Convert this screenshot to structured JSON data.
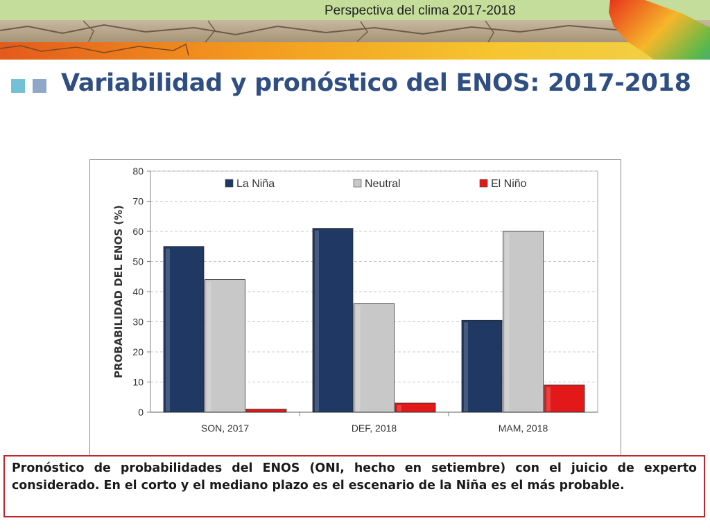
{
  "header": {
    "subtitle": "Perspectiva del clima 2017-2018"
  },
  "slide": {
    "title": "Variabilidad y pronóstico del ENOS: 2017-2018"
  },
  "caption": "Pronóstico de probabilidades del ENOS (ONI, hecho en setiembre) con el juicio de experto considerado. En el corto y el mediano plazo es el escenario de la Niña es el más probable.",
  "colors": {
    "la_nina": "#1f3864",
    "neutral": "#c8c8c8",
    "el_nino": "#e31818",
    "title": "#2f4e82",
    "caption_border": "#c0262b"
  },
  "chart_data": {
    "type": "bar",
    "title": "",
    "xlabel": "",
    "ylabel": "PROBABILIDAD DEL ENOS (%)",
    "ylim": [
      0,
      80
    ],
    "yticks": [
      0,
      10,
      20,
      30,
      40,
      50,
      60,
      70,
      80
    ],
    "grid": true,
    "legend_position": "top",
    "categories": [
      "SON, 2017",
      "DEF, 2018",
      "MAM, 2018"
    ],
    "series": [
      {
        "name": "La Niña",
        "color": "#1f3864",
        "values": [
          55,
          61,
          30.5
        ]
      },
      {
        "name": "Neutral",
        "color": "#c8c8c8",
        "values": [
          44,
          36,
          60
        ]
      },
      {
        "name": "El Niño",
        "color": "#e31818",
        "values": [
          1,
          3,
          9
        ]
      }
    ]
  }
}
